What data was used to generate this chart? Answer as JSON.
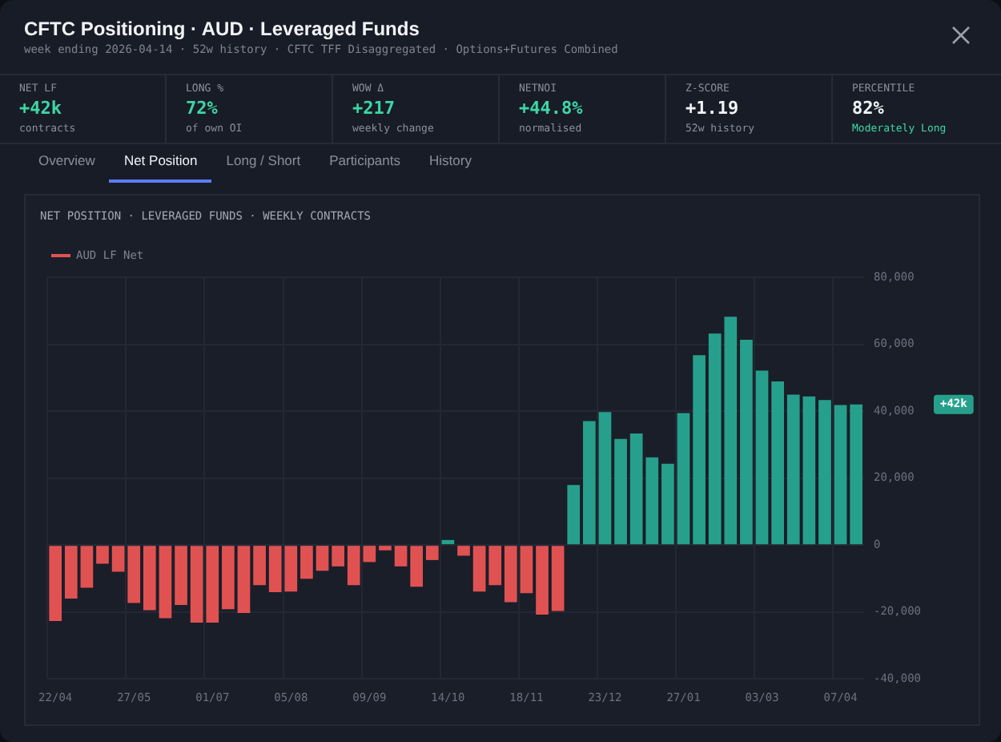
{
  "chart_data": [
    {
      "type": "other",
      "title": "CFTC Positioning · AUD · Leveraged Funds",
      "subtitle": "week ending 2026-04-14 · 52w history · CFTC TFF Disaggregated · Options+Futures Combined",
      "annotations": [
        "NET LF",
        "+42k",
        "contracts",
        "LONG %",
        "72%",
        "of own OI",
        "WOW Δ",
        "+217",
        "weekly change",
        "NETNOI",
        "+44.8%",
        "normalised",
        "Z-SCORE",
        "+1.19",
        "52w history",
        "PERCENTILE",
        "82%",
        "Moderately Long"
      ]
    },
    {
      "type": "other",
      "annotations": [
        "Overview",
        "Net Position",
        "Long / Short",
        "Participants",
        "History"
      ]
    },
    {
      "type": "bar",
      "title": "NET POSITION · LEVERAGED FUNDS · WEEKLY CONTRACTS",
      "categories": [
        "22/04",
        null,
        null,
        null,
        null,
        "27/05",
        null,
        null,
        null,
        null,
        "01/07",
        null,
        null,
        null,
        null,
        "05/08",
        null,
        null,
        null,
        null,
        "09/09",
        null,
        null,
        null,
        null,
        "14/10",
        null,
        null,
        null,
        null,
        "18/11",
        null,
        null,
        null,
        null,
        "23/12",
        null,
        null,
        null,
        null,
        "27/01",
        null,
        null,
        null,
        null,
        "03/03",
        null,
        null,
        null,
        null,
        "07/04",
        null
      ],
      "series": [
        {
          "name": "AUD LF Net",
          "color": "#e05252",
          "values": [
            -22700,
            -16000,
            -12800,
            -5600,
            -8000,
            -17300,
            -19500,
            -21900,
            -17900,
            -23200,
            -23200,
            -19200,
            -20300,
            -12000,
            -14100,
            -13900,
            -10100,
            -7700,
            -6400,
            -12000,
            -5100,
            -1600,
            -6400,
            -12500,
            -4500,
            1500,
            -3200,
            -13900,
            -12000,
            -17100,
            -14400,
            -20800,
            -19700,
            17900,
            37000,
            39700,
            31700,
            33300,
            26200,
            24300,
            39400,
            56700,
            63200,
            68200,
            61300,
            52100,
            48900,
            44900,
            44400,
            43300,
            41800,
            42000
          ],
          "colors": [
            "#e05252",
            "#e05252",
            "#e05252",
            "#e05252",
            "#e05252",
            "#e05252",
            "#e05252",
            "#e05252",
            "#e05252",
            "#e05252",
            "#e05252",
            "#e05252",
            "#e05252",
            "#e05252",
            "#e05252",
            "#e05252",
            "#e05252",
            "#e05252",
            "#e05252",
            "#e05252",
            "#e05252",
            "#e05252",
            "#e05252",
            "#e05252",
            "#e05252",
            "#26a08c",
            "#e05252",
            "#e05252",
            "#e05252",
            "#e05252",
            "#e05252",
            "#e05252",
            "#e05252",
            "#26a08c",
            "#26a08c",
            "#26a08c",
            "#26a08c",
            "#26a08c",
            "#26a08c",
            "#26a08c",
            "#26a08c",
            "#26a08c",
            "#26a08c",
            "#26a08c",
            "#26a08c",
            "#26a08c",
            "#26a08c",
            "#26a08c",
            "#26a08c",
            "#26a08c",
            "#26a08c",
            "#26a08c"
          ]
        }
      ],
      "ylim": [
        -40000,
        80000
      ],
      "yticks": [
        {
          "value": -40000,
          "label": "-40,000"
        },
        {
          "value": -20000,
          "label": "-20,000"
        },
        0,
        {
          "value": 20000,
          "label": "20,000"
        },
        {
          "value": 40000,
          "label": "40,000"
        },
        {
          "value": 60000,
          "label": "60,000"
        },
        {
          "value": 80000,
          "label": "80,000"
        }
      ],
      "grid": true,
      "legend": "top left",
      "annotations": [
        "+42k"
      ]
    }
  ]
}
